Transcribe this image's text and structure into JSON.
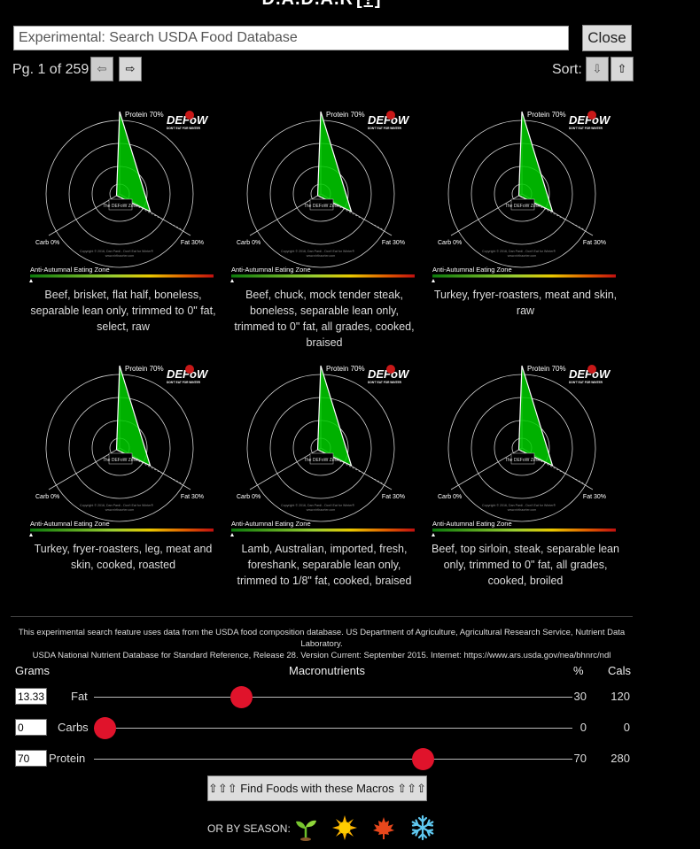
{
  "app": {
    "title": "D.A.D.A.R",
    "help_link": "[?]"
  },
  "search": {
    "placeholder": "",
    "value": "Experimental: Search USDA Food Database"
  },
  "close_label": "Close",
  "pager": {
    "label": "Pg. 1 of 259",
    "prev_icon": "left-arrow-icon",
    "next_icon": "right-arrow-icon"
  },
  "sort": {
    "label": "Sort:",
    "down_icon": "down-arrow-icon",
    "up_icon": "up-arrow-icon"
  },
  "chart_common": {
    "protein_label": "Protein 70%",
    "carb_label": "Carb 0%",
    "fat_label": "Fat 30%",
    "logo": "DEFoW",
    "logo_sub": "DON'T EAT FOR WINTER",
    "zone_label": "Anti-Autumnal Eating Zone",
    "copyright": "Copyright © 2016, Dan Pardi - Don't Eat for Winter®",
    "site": "www.nirthaorter.com",
    "center_label": "The DEFoW Zone",
    "protein_pct": 70,
    "carb_pct": 0,
    "fat_pct": 30,
    "fill_color": "#00d000"
  },
  "foods": [
    {
      "name": "Beef, brisket, flat half, boneless, separable lean only, trimmed to 0\" fat, select, raw"
    },
    {
      "name": "Beef, chuck, mock tender steak, boneless, separable lean only, trimmed to 0\" fat, all grades, cooked, braised"
    },
    {
      "name": "Turkey, fryer-roasters, meat and skin, raw"
    },
    {
      "name": "Turkey, fryer-roasters, leg, meat and skin, cooked, roasted"
    },
    {
      "name": "Lamb, Australian, imported, fresh, foreshank, separable lean only, trimmed to 1/8\" fat, cooked, braised"
    },
    {
      "name": "Beef, top sirloin, steak, separable lean only, trimmed to 0\" fat, all grades, cooked, broiled"
    }
  ],
  "credit": {
    "line1": "This experimental search feature uses data from the USDA food composition database. US Department of Agriculture, Agricultural Research Service, Nutrient Data Laboratory.",
    "line2": "USDA National Nutrient Database for Standard Reference, Release 28. Version Current: September 2015. Internet: https://www.ars.usda.gov/nea/bhnrc/ndl"
  },
  "macros": {
    "headers": {
      "grams": "Grams",
      "macronutrients": "Macronutrients",
      "percent": "%",
      "cals": "Cals"
    },
    "rows": [
      {
        "label": "Fat",
        "grams": "13.33",
        "percent": "30",
        "cals": "120",
        "fraction": 0.3
      },
      {
        "label": "Carbs",
        "grams": "0",
        "percent": "0",
        "cals": "0",
        "fraction": 0.0
      },
      {
        "label": "Protein",
        "grams": "70",
        "percent": "70",
        "cals": "280",
        "fraction": 0.7
      }
    ],
    "accent": "#e0132b"
  },
  "find_button": "⇧⇧⇧ Find Foods with these Macros ⇧⇧⇧",
  "season": {
    "label": "OR BY SEASON:",
    "icons": [
      "sprout-icon",
      "sun-icon",
      "maple-leaf-icon",
      "snowflake-icon"
    ]
  }
}
